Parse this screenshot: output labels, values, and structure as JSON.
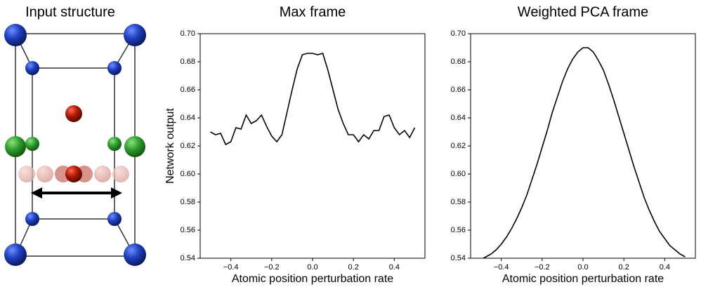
{
  "diagram": {
    "title": "Input structure"
  },
  "chart_data": [
    {
      "type": "line",
      "title": "Max frame",
      "xlabel": "Atomic position perturbation rate",
      "ylabel": "Network output",
      "color": "#000000",
      "x": [
        -0.5,
        -0.475,
        -0.45,
        -0.425,
        -0.4,
        -0.375,
        -0.35,
        -0.325,
        -0.3,
        -0.275,
        -0.25,
        -0.225,
        -0.2,
        -0.175,
        -0.15,
        -0.125,
        -0.1,
        -0.075,
        -0.05,
        -0.025,
        0,
        0.025,
        0.05,
        0.075,
        0.1,
        0.125,
        0.15,
        0.175,
        0.2,
        0.225,
        0.25,
        0.275,
        0.3,
        0.325,
        0.35,
        0.375,
        0.4,
        0.425,
        0.45,
        0.475,
        0.5
      ],
      "values": [
        0.63,
        0.628,
        0.629,
        0.621,
        0.623,
        0.633,
        0.632,
        0.642,
        0.636,
        0.638,
        0.642,
        0.634,
        0.627,
        0.623,
        0.628,
        0.644,
        0.66,
        0.675,
        0.685,
        0.686,
        0.686,
        0.685,
        0.686,
        0.674,
        0.66,
        0.646,
        0.636,
        0.628,
        0.628,
        0.623,
        0.628,
        0.625,
        0.631,
        0.631,
        0.641,
        0.642,
        0.633,
        0.628,
        0.631,
        0.626,
        0.633
      ],
      "xlim": [
        -0.55,
        0.55
      ],
      "ylim": [
        0.54,
        0.7
      ],
      "xticks": [
        {
          "value": -0.4,
          "label": "−0.4"
        },
        {
          "value": -0.2,
          "label": "−0.2"
        },
        {
          "value": 0,
          "label": "0.0"
        },
        0.2,
        0.4
      ],
      "yticks": [
        0.54,
        0.56,
        0.58,
        {
          "value": 0.6,
          "label": "0.60"
        },
        0.62,
        0.64,
        0.66,
        0.68,
        {
          "value": 0.7,
          "label": "0.70"
        }
      ]
    },
    {
      "type": "line",
      "title": "Weighted PCA frame",
      "xlabel": "Atomic position perturbation rate",
      "color": "#000000",
      "x": [
        -0.5,
        -0.475,
        -0.45,
        -0.425,
        -0.4,
        -0.375,
        -0.35,
        -0.325,
        -0.3,
        -0.275,
        -0.25,
        -0.225,
        -0.2,
        -0.175,
        -0.15,
        -0.125,
        -0.1,
        -0.075,
        -0.05,
        -0.025,
        0,
        0.025,
        0.05,
        0.075,
        0.1,
        0.125,
        0.15,
        0.175,
        0.2,
        0.225,
        0.25,
        0.275,
        0.3,
        0.325,
        0.35,
        0.375,
        0.4,
        0.425,
        0.45,
        0.475,
        0.5
      ],
      "values": [
        0.539,
        0.541,
        0.543,
        0.546,
        0.55,
        0.555,
        0.561,
        0.568,
        0.576,
        0.585,
        0.596,
        0.607,
        0.619,
        0.631,
        0.644,
        0.655,
        0.666,
        0.675,
        0.682,
        0.687,
        0.69,
        0.69,
        0.687,
        0.681,
        0.674,
        0.664,
        0.653,
        0.641,
        0.629,
        0.617,
        0.605,
        0.594,
        0.583,
        0.574,
        0.566,
        0.559,
        0.554,
        0.549,
        0.546,
        0.543,
        0.541
      ],
      "xlim": [
        -0.55,
        0.55
      ],
      "ylim": [
        0.54,
        0.7
      ],
      "xticks": [
        {
          "value": -0.4,
          "label": "−0.4"
        },
        {
          "value": -0.2,
          "label": "−0.2"
        },
        {
          "value": 0,
          "label": "0.0"
        },
        0.2,
        0.4
      ],
      "yticks": [
        0.54,
        0.56,
        0.58,
        {
          "value": 0.6,
          "label": "0.60"
        },
        0.62,
        0.64,
        0.66,
        0.68,
        {
          "value": 0.7,
          "label": "0.70"
        }
      ]
    }
  ]
}
